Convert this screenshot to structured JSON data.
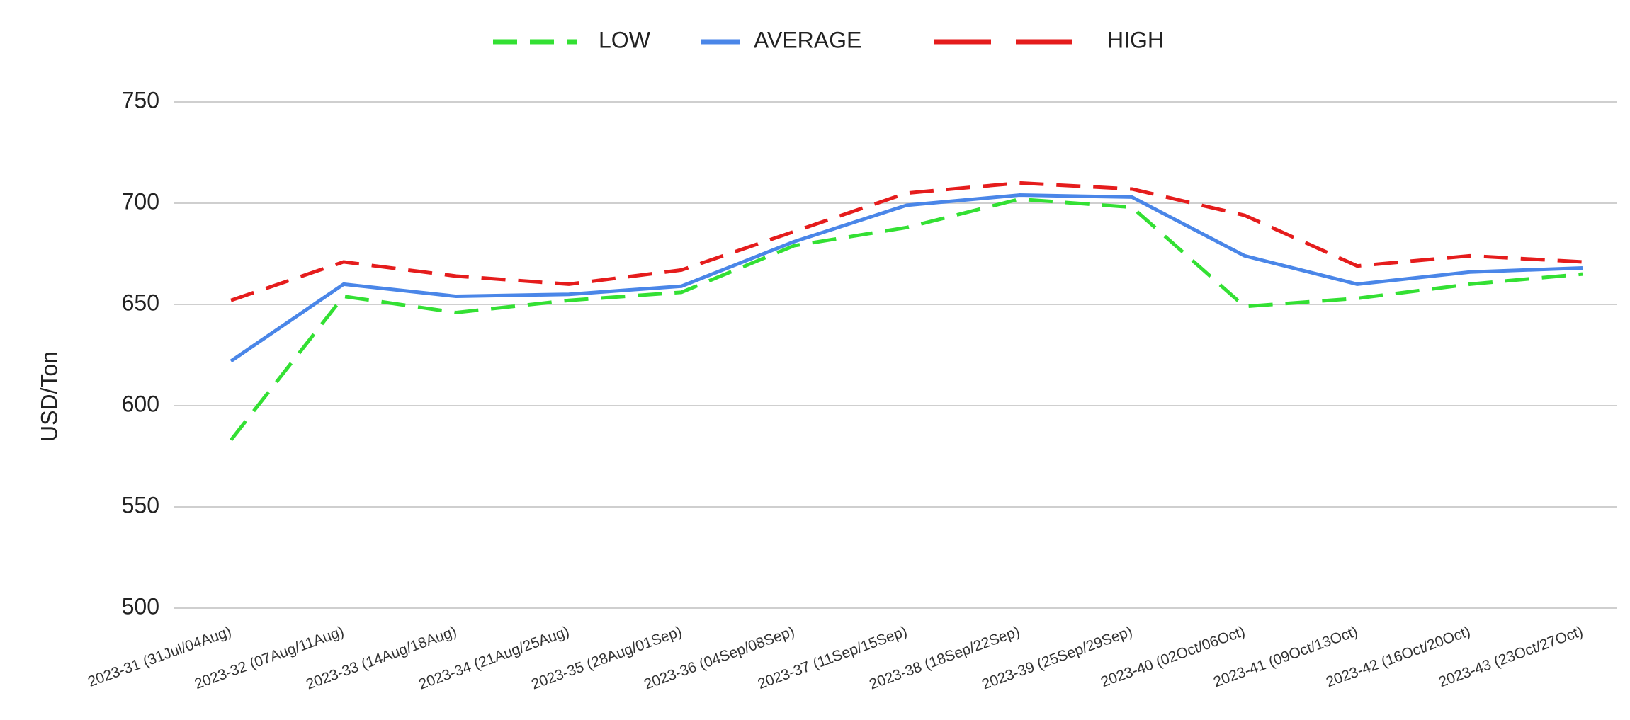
{
  "chart_data": {
    "type": "line",
    "ylabel": "USD/Ton",
    "categories": [
      "2023-31 (31Jul/04Aug)",
      "2023-32 (07Aug/11Aug)",
      "2023-33 (14Aug/18Aug)",
      "2023-34 (21Aug/25Aug)",
      "2023-35 (28Aug/01Sep)",
      "2023-36 (04Sep/08Sep)",
      "2023-37 (11Sep/15Sep)",
      "2023-38 (18Sep/22Sep)",
      "2023-39 (25Sep/29Sep)",
      "2023-40 (02Oct/06Oct)",
      "2023-41 (09Oct/13Oct)",
      "2023-42 (16Oct/20Oct)",
      "2023-43 (23Oct/27Oct)"
    ],
    "series": [
      {
        "name": "LOW",
        "color": "#33e033",
        "style": "dashed",
        "values": [
          583,
          654,
          646,
          652,
          656,
          679,
          688,
          702,
          698,
          649,
          653,
          660,
          665
        ]
      },
      {
        "name": "AVERAGE",
        "color": "#4a86e8",
        "style": "solid",
        "values": [
          622,
          660,
          654,
          655,
          659,
          681,
          699,
          704,
          703,
          674,
          660,
          666,
          668
        ]
      },
      {
        "name": "HIGH",
        "color": "#e51c1c",
        "style": "dashed",
        "values": [
          652,
          671,
          664,
          660,
          667,
          686,
          705,
          710,
          707,
          694,
          669,
          674,
          671
        ]
      }
    ],
    "ylim": [
      500,
      750
    ],
    "yticks": [
      500,
      550,
      600,
      650,
      700,
      750
    ],
    "grid": true,
    "legend": "top"
  }
}
